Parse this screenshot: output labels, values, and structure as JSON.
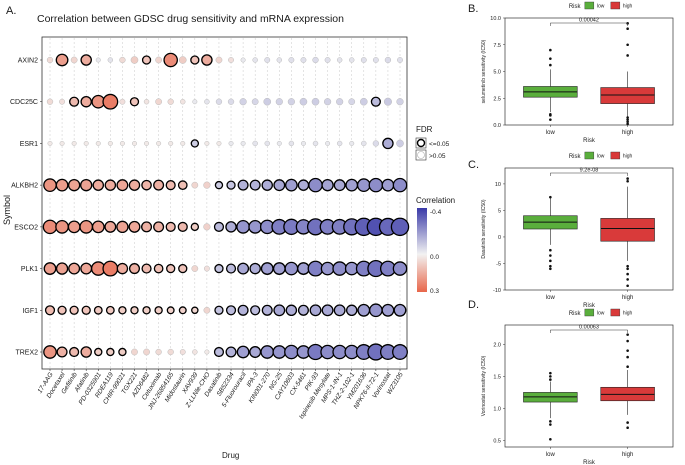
{
  "panel_a": {
    "letter": "A.",
    "title": "Correlation between GDSC drug sensitivity and mRNA expression",
    "xlabel": "Drug",
    "ylabel": "Symbol",
    "fdr_title": "FDR",
    "fdr_labels": [
      "<=0.05",
      ">0.05"
    ],
    "corr_title": "Correlation",
    "corr_ticks": [
      "-0.4",
      "0.0",
      "0.3"
    ]
  },
  "panel_b": {
    "letter": "B.",
    "pvalue": "0.00042",
    "legend_title": "Risk",
    "legend": [
      "low",
      "high"
    ]
  },
  "panel_c": {
    "letter": "C.",
    "pvalue": "9.2e-08",
    "legend_title": "Risk",
    "legend": [
      "low",
      "high"
    ]
  },
  "panel_d": {
    "letter": "D.",
    "pvalue": "0.00063",
    "legend_title": "Risk",
    "legend": [
      "low",
      "high"
    ]
  },
  "colors": {
    "low": "#5aae3c",
    "high": "#d93a3a",
    "neg": "#3a3aa8",
    "pos": "#e8664a"
  },
  "chart_data": [
    {
      "type": "bubble",
      "title": "Correlation between GDSC drug sensitivity and mRNA expression",
      "xlabel": "Drug",
      "ylabel": "Symbol",
      "genes": [
        "AXIN2",
        "CDC25C",
        "ESR1",
        "ALKBH2",
        "ESCO2",
        "PLK1",
        "IGF1",
        "TREX2"
      ],
      "drugs": [
        "17-AAG",
        "Docetaxel",
        "Gefitinib",
        "Afatinib",
        "PD-0325901",
        "RDEA119",
        "CHIR-99021",
        "TGX221",
        "AZD6482",
        "Cetuximab",
        "JNJ-26854165",
        "Midostaurin",
        "XAV939",
        "Z-LLNle-CHO",
        "Dasatinib",
        "SB52334",
        "5-Fluorouracil",
        "IPA-3",
        "KIN001-270",
        "NG-25",
        "CAY10603",
        "CX-5461",
        "PIK-93",
        "Ispinesib Mesylate",
        "MPS-1-IN-1",
        "THZ-2-102-1",
        "YM201636",
        "NPK76-II-72-1",
        "Vorinostat",
        "WZ3105"
      ],
      "corr": [
        [
          0.05,
          0.18,
          0.06,
          0.15,
          -0.02,
          -0.03,
          0.05,
          0.08,
          0.1,
          0.06,
          0.22,
          0.08,
          0.1,
          0.15,
          0.06,
          0.04,
          -0.02,
          -0.03,
          -0.04,
          -0.03,
          -0.04,
          -0.04,
          -0.05,
          -0.04,
          -0.03,
          -0.03,
          -0.04,
          -0.04,
          -0.05,
          -0.04
        ],
        [
          0.05,
          0.04,
          0.12,
          0.15,
          0.2,
          0.25,
          0.04,
          0.1,
          0.03,
          0.06,
          0.05,
          0.03,
          -0.02,
          -0.03,
          -0.05,
          -0.05,
          -0.07,
          -0.06,
          -0.08,
          -0.07,
          -0.07,
          -0.08,
          -0.08,
          -0.07,
          -0.07,
          -0.06,
          -0.08,
          -0.12,
          -0.09,
          -0.07
        ],
        [
          0.02,
          0.02,
          0.02,
          0.02,
          0.02,
          0.02,
          0.02,
          0.02,
          0.02,
          0.02,
          0.02,
          0.02,
          -0.08,
          0.02,
          0.02,
          -0.02,
          -0.02,
          -0.03,
          -0.03,
          -0.02,
          -0.03,
          -0.02,
          -0.03,
          -0.02,
          -0.03,
          -0.02,
          -0.03,
          -0.05,
          -0.15,
          -0.08
        ],
        [
          0.2,
          0.18,
          0.17,
          0.17,
          0.15,
          0.15,
          0.16,
          0.15,
          0.13,
          0.14,
          0.12,
          0.11,
          0.06,
          0.07,
          -0.08,
          -0.1,
          -0.14,
          -0.14,
          -0.15,
          -0.16,
          -0.18,
          -0.15,
          -0.22,
          -0.17,
          -0.16,
          -0.18,
          -0.2,
          -0.22,
          -0.18,
          -0.22
        ],
        [
          0.22,
          0.2,
          0.18,
          0.2,
          0.18,
          0.16,
          0.17,
          0.16,
          0.14,
          0.14,
          0.12,
          0.12,
          0.08,
          0.07,
          -0.12,
          -0.15,
          -0.2,
          -0.2,
          -0.22,
          -0.25,
          -0.26,
          -0.24,
          -0.28,
          -0.25,
          -0.25,
          -0.28,
          -0.32,
          -0.35,
          -0.3,
          -0.32
        ],
        [
          0.18,
          0.17,
          0.16,
          0.16,
          0.22,
          0.25,
          0.15,
          0.14,
          0.12,
          0.11,
          0.1,
          0.1,
          0.06,
          0.04,
          -0.1,
          -0.12,
          -0.16,
          -0.15,
          -0.18,
          -0.18,
          -0.2,
          -0.18,
          -0.25,
          -0.2,
          -0.22,
          -0.2,
          -0.25,
          -0.28,
          -0.25,
          -0.22
        ],
        [
          0.12,
          0.1,
          0.1,
          0.1,
          0.09,
          0.09,
          0.08,
          0.08,
          0.08,
          0.08,
          0.07,
          0.07,
          0.06,
          0.06,
          -0.1,
          -0.12,
          -0.14,
          -0.12,
          -0.14,
          -0.16,
          -0.15,
          -0.14,
          -0.16,
          -0.16,
          -0.16,
          -0.15,
          -0.18,
          -0.2,
          -0.18,
          -0.18
        ],
        [
          0.2,
          0.14,
          0.12,
          0.15,
          0.08,
          0.08,
          0.08,
          0.06,
          0.06,
          0.05,
          0.05,
          0.04,
          0.03,
          0.02,
          -0.12,
          -0.14,
          -0.18,
          -0.16,
          -0.2,
          -0.2,
          -0.22,
          -0.2,
          -0.26,
          -0.22,
          -0.22,
          -0.22,
          -0.25,
          -0.28,
          -0.25,
          -0.25
        ]
      ],
      "fdr_sig": [
        [
          0,
          1,
          0,
          1,
          0,
          0,
          0,
          0,
          1,
          0,
          1,
          0,
          1,
          1,
          0,
          0,
          0,
          0,
          0,
          0,
          0,
          0,
          0,
          0,
          0,
          0,
          0,
          0,
          0,
          0
        ],
        [
          0,
          0,
          1,
          1,
          1,
          1,
          0,
          1,
          0,
          0,
          0,
          0,
          0,
          0,
          0,
          0,
          0,
          0,
          0,
          0,
          0,
          0,
          0,
          0,
          0,
          0,
          0,
          1,
          0,
          0
        ],
        [
          0,
          0,
          0,
          0,
          0,
          0,
          0,
          0,
          0,
          0,
          0,
          0,
          1,
          0,
          0,
          0,
          0,
          0,
          0,
          0,
          0,
          0,
          0,
          0,
          0,
          0,
          0,
          0,
          1,
          0
        ],
        [
          1,
          1,
          1,
          1,
          1,
          1,
          1,
          1,
          1,
          1,
          1,
          1,
          0,
          0,
          1,
          1,
          1,
          1,
          1,
          1,
          1,
          1,
          1,
          1,
          1,
          1,
          1,
          1,
          1,
          1
        ],
        [
          1,
          1,
          1,
          1,
          1,
          1,
          1,
          1,
          1,
          1,
          1,
          1,
          1,
          0,
          1,
          1,
          1,
          1,
          1,
          1,
          1,
          1,
          1,
          1,
          1,
          1,
          1,
          1,
          1,
          1
        ],
        [
          1,
          1,
          1,
          1,
          1,
          1,
          1,
          1,
          1,
          1,
          1,
          1,
          0,
          0,
          1,
          1,
          1,
          1,
          1,
          1,
          1,
          1,
          1,
          1,
          1,
          1,
          1,
          1,
          1,
          1
        ],
        [
          1,
          1,
          1,
          1,
          1,
          1,
          1,
          1,
          1,
          1,
          1,
          1,
          1,
          0,
          1,
          1,
          1,
          1,
          1,
          1,
          1,
          1,
          1,
          1,
          1,
          1,
          1,
          1,
          1,
          1
        ],
        [
          1,
          1,
          1,
          1,
          1,
          1,
          1,
          0,
          0,
          0,
          0,
          0,
          0,
          0,
          1,
          1,
          1,
          1,
          1,
          1,
          1,
          1,
          1,
          1,
          1,
          1,
          1,
          1,
          1,
          1
        ]
      ],
      "color_range": [
        -0.4,
        0.3
      ]
    },
    {
      "type": "box",
      "panel": "B",
      "ylabel": "selumetinib sensitivity (IC50)",
      "xlabel": "Risk",
      "categories": [
        "low",
        "high"
      ],
      "ylim": [
        0,
        10
      ],
      "yticks": [
        0,
        2.5,
        5,
        7.5,
        10
      ],
      "ytick_labels": [
        "0.0",
        "2.5",
        "5.0",
        "7.5",
        "10.0"
      ],
      "boxes": [
        {
          "q1": 2.6,
          "median": 3.1,
          "q3": 3.6,
          "whisker_low": 1.2,
          "whisker_high": 5.2,
          "outliers": [
            0.5,
            0.9,
            1.0,
            5.6,
            6.2,
            7.0
          ]
        },
        {
          "q1": 2.0,
          "median": 2.8,
          "q3": 3.5,
          "whisker_low": 0.6,
          "whisker_high": 5.0,
          "outliers": [
            0.1,
            0.3,
            0.5,
            0.7,
            6.5,
            7.5,
            9.0,
            9.5
          ]
        }
      ],
      "pvalue": "0.00042"
    },
    {
      "type": "box",
      "panel": "C",
      "ylabel": "Dasatinib sensitivity (IC50)",
      "xlabel": "Risk",
      "categories": [
        "low",
        "high"
      ],
      "ylim": [
        -10,
        13
      ],
      "yticks": [
        -10,
        -5,
        0,
        5,
        10
      ],
      "ytick_labels": [
        "-10",
        "-5",
        "0",
        "5",
        "10"
      ],
      "boxes": [
        {
          "q1": 1.5,
          "median": 2.8,
          "q3": 4.0,
          "whisker_low": -1.5,
          "whisker_high": 7.3,
          "outliers": [
            -2.5,
            -3.5,
            -4.5,
            -5.5,
            -6.0,
            7.5
          ]
        },
        {
          "q1": -0.8,
          "median": 1.6,
          "q3": 3.5,
          "whisker_low": -4.5,
          "whisker_high": 9.5,
          "outliers": [
            -5.5,
            -6.0,
            -7.0,
            -8.0,
            -9.2,
            10.5,
            11.0
          ]
        }
      ],
      "pvalue": "9.2e-08"
    },
    {
      "type": "box",
      "panel": "D",
      "ylabel": "Vorinostat sensitivity (IC50)",
      "xlabel": "Risk",
      "categories": [
        "low",
        "high"
      ],
      "ylim": [
        0.4,
        2.3
      ],
      "yticks": [
        0.5,
        1.0,
        1.5,
        2.0
      ],
      "ytick_labels": [
        "0.5",
        "1.0",
        "1.5",
        "2.0"
      ],
      "boxes": [
        {
          "q1": 1.1,
          "median": 1.18,
          "q3": 1.25,
          "whisker_low": 0.85,
          "whisker_high": 1.42,
          "outliers": [
            0.52,
            0.75,
            0.8,
            1.45,
            1.5,
            1.55
          ]
        },
        {
          "q1": 1.12,
          "median": 1.22,
          "q3": 1.33,
          "whisker_low": 0.9,
          "whisker_high": 1.6,
          "outliers": [
            0.7,
            0.78,
            1.65,
            1.8,
            1.9,
            2.05,
            2.15
          ]
        }
      ],
      "pvalue": "0.00063"
    }
  ]
}
